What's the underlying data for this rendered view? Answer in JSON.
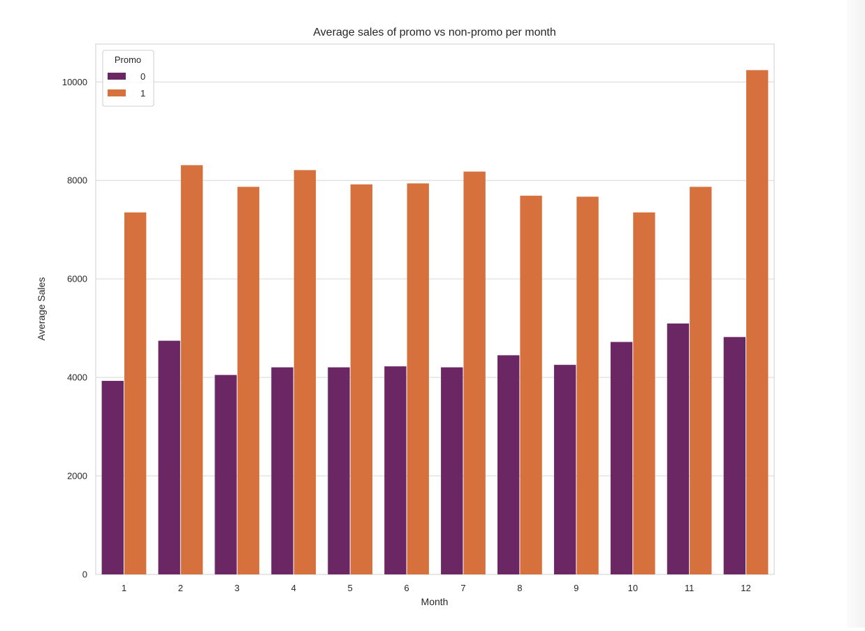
{
  "chart_data": {
    "type": "bar",
    "title": "Average sales of promo vs non-promo per month",
    "xlabel": "Month",
    "ylabel": "Average Sales",
    "categories": [
      "1",
      "2",
      "3",
      "4",
      "5",
      "6",
      "7",
      "8",
      "9",
      "10",
      "11",
      "12"
    ],
    "series": [
      {
        "name": "0",
        "color": "#6b2763",
        "values": [
          3930,
          4745,
          4050,
          4205,
          4205,
          4225,
          4205,
          4450,
          4255,
          4720,
          5095,
          4820
        ]
      },
      {
        "name": "1",
        "color": "#d6713e",
        "values": [
          7350,
          8310,
          7870,
          8210,
          7920,
          7940,
          8180,
          7690,
          7670,
          7350,
          7870,
          10240
        ]
      }
    ],
    "ylim": [
      0,
      10770
    ],
    "yticks": [
      0,
      2000,
      4000,
      6000,
      8000,
      10000
    ],
    "grid": "horizontal",
    "legend": {
      "title": "Promo",
      "placement": "top-left"
    }
  }
}
